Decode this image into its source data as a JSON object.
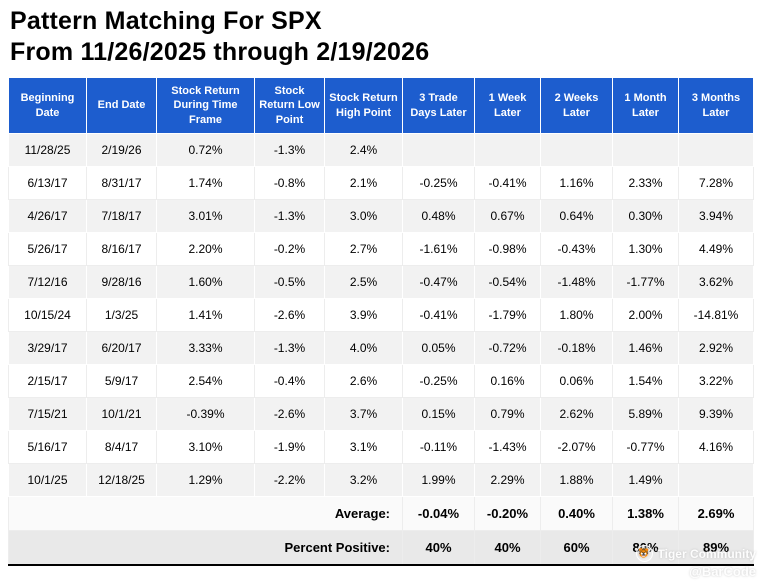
{
  "title": {
    "line1": "Pattern Matching For SPX",
    "line2": "From 11/26/2025 through 2/19/2026"
  },
  "chart_data": {
    "type": "table",
    "title": "Pattern Matching For SPX From 11/26/2025 through 2/19/2026",
    "columns": [
      "Beginning Date",
      "End Date",
      "Stock Return During Time Frame",
      "Stock Return Low Point",
      "Stock Return High Point",
      "3 Trade Days Later",
      "1 Week Later",
      "2 Weeks Later",
      "1 Month Later",
      "3 Months Later"
    ],
    "rows": [
      [
        "11/28/25",
        "2/19/26",
        "0.72%",
        "-1.3%",
        "2.4%",
        "",
        "",
        "",
        "",
        ""
      ],
      [
        "6/13/17",
        "8/31/17",
        "1.74%",
        "-0.8%",
        "2.1%",
        "-0.25%",
        "-0.41%",
        "1.16%",
        "2.33%",
        "7.28%"
      ],
      [
        "4/26/17",
        "7/18/17",
        "3.01%",
        "-1.3%",
        "3.0%",
        "0.48%",
        "0.67%",
        "0.64%",
        "0.30%",
        "3.94%"
      ],
      [
        "5/26/17",
        "8/16/17",
        "2.20%",
        "-0.2%",
        "2.7%",
        "-1.61%",
        "-0.98%",
        "-0.43%",
        "1.30%",
        "4.49%"
      ],
      [
        "7/12/16",
        "9/28/16",
        "1.60%",
        "-0.5%",
        "2.5%",
        "-0.47%",
        "-0.54%",
        "-1.48%",
        "-1.77%",
        "3.62%"
      ],
      [
        "10/15/24",
        "1/3/25",
        "1.41%",
        "-2.6%",
        "3.9%",
        "-0.41%",
        "-1.79%",
        "1.80%",
        "2.00%",
        "-14.81%"
      ],
      [
        "3/29/17",
        "6/20/17",
        "3.33%",
        "-1.3%",
        "4.0%",
        "0.05%",
        "-0.72%",
        "-0.18%",
        "1.46%",
        "2.92%"
      ],
      [
        "2/15/17",
        "5/9/17",
        "2.54%",
        "-0.4%",
        "2.6%",
        "-0.25%",
        "0.16%",
        "0.06%",
        "1.54%",
        "3.22%"
      ],
      [
        "7/15/21",
        "10/1/21",
        "-0.39%",
        "-2.6%",
        "3.7%",
        "0.15%",
        "0.79%",
        "2.62%",
        "5.89%",
        "9.39%"
      ],
      [
        "5/16/17",
        "8/4/17",
        "3.10%",
        "-1.9%",
        "3.1%",
        "-0.11%",
        "-1.43%",
        "-2.07%",
        "-0.77%",
        "4.16%"
      ],
      [
        "10/1/25",
        "12/18/25",
        "1.29%",
        "-2.2%",
        "3.2%",
        "1.99%",
        "2.29%",
        "1.88%",
        "1.49%",
        ""
      ]
    ],
    "summary": {
      "average_label": "Average:",
      "average_values": [
        "-0.04%",
        "-0.20%",
        "0.40%",
        "1.38%",
        "2.69%"
      ],
      "percent_label": "Percent Positive:",
      "percent_values": [
        "40%",
        "40%",
        "60%",
        "80%",
        "89%"
      ]
    }
  },
  "watermark": {
    "community": "Tiger Community",
    "handle": "@BarCode"
  },
  "colors": {
    "header_bg": "#1d5dce",
    "row_alt": "#f2f2f2",
    "summary_pct_bg": "#e9e9e9"
  }
}
